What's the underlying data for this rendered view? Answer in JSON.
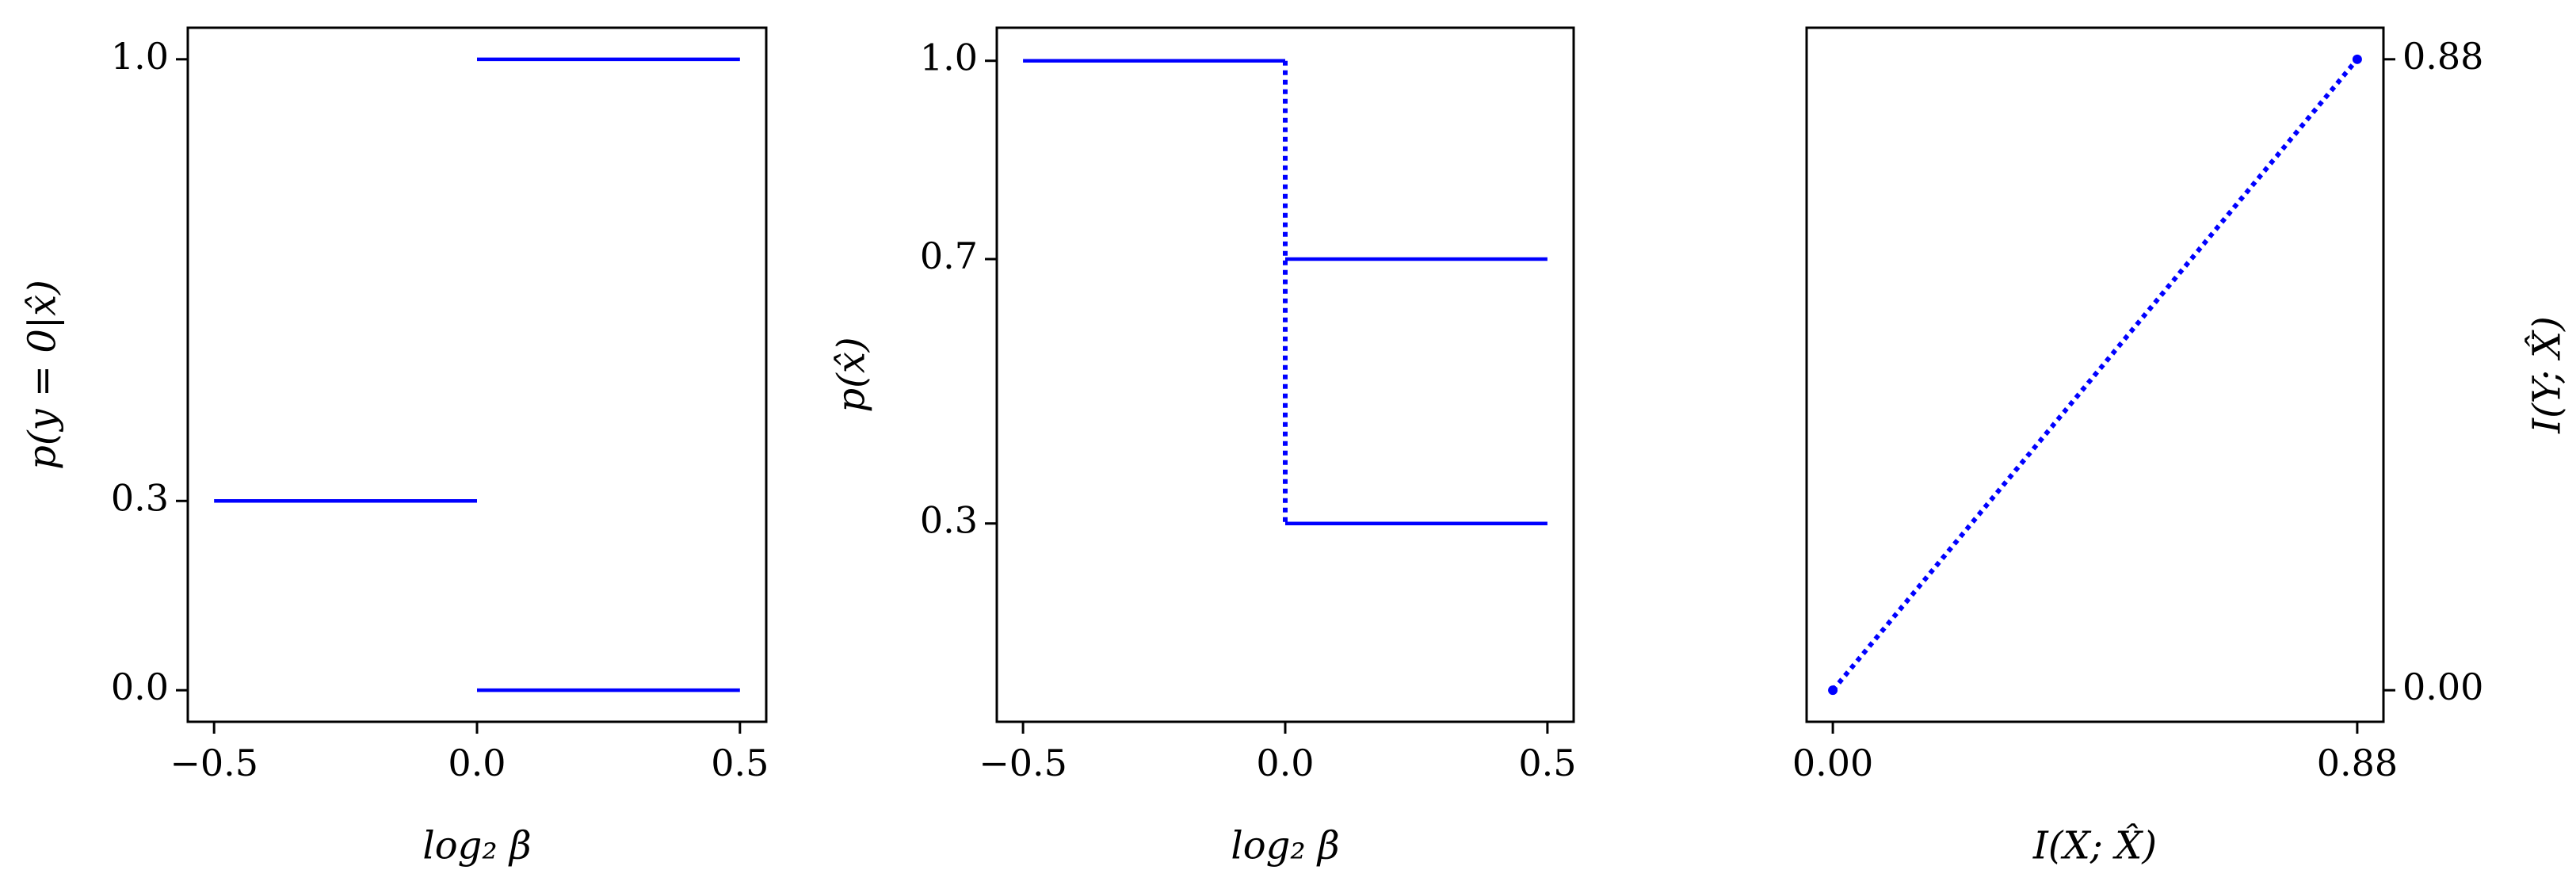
{
  "chart_data": [
    {
      "type": "line",
      "xlabel": "log₂ β",
      "ylabel": "p(y = 0|x̂)",
      "xlim": [
        -0.55,
        0.55
      ],
      "ylim": [
        -0.05,
        1.05
      ],
      "xticks": [
        {
          "value": -0.5,
          "label": "−0.5"
        },
        {
          "value": 0,
          "label": "0.0"
        },
        0.5
      ],
      "yticks": [
        {
          "value": 0,
          "label": "0.0"
        },
        0.3,
        {
          "value": 1,
          "label": "1.0"
        }
      ],
      "yaxis_side": "left",
      "series": [
        {
          "color": "#0000ff",
          "linestyle": "solid",
          "x": [
            -0.5,
            0
          ],
          "values": [
            0.3,
            0.3
          ]
        },
        {
          "color": "#0000ff",
          "linestyle": "solid",
          "x": [
            0,
            0.5
          ],
          "values": [
            1,
            1
          ]
        },
        {
          "color": "#0000ff",
          "linestyle": "solid",
          "x": [
            0,
            0.5
          ],
          "values": [
            0,
            0
          ]
        }
      ]
    },
    {
      "type": "line",
      "xlabel": "log₂ β",
      "ylabel": "p(x̂)",
      "xlim": [
        -0.55,
        0.55
      ],
      "ylim": [
        0,
        1.05
      ],
      "xticks": [
        {
          "value": -0.5,
          "label": "−0.5"
        },
        {
          "value": 0,
          "label": "0.0"
        },
        0.5
      ],
      "yticks": [
        0.3,
        0.7,
        {
          "value": 1,
          "label": "1.0"
        }
      ],
      "yaxis_side": "left",
      "series": [
        {
          "color": "#0000ff",
          "linestyle": "solid",
          "x": [
            -0.5,
            0
          ],
          "values": [
            1,
            1
          ]
        },
        {
          "color": "#0000ff",
          "linestyle": "dotted",
          "x": [
            0,
            0
          ],
          "values": [
            1,
            0.3
          ]
        },
        {
          "color": "#0000ff",
          "linestyle": "solid",
          "x": [
            0,
            0.5
          ],
          "values": [
            0.7,
            0.7
          ]
        },
        {
          "color": "#0000ff",
          "linestyle": "solid",
          "x": [
            0,
            0.5
          ],
          "values": [
            0.3,
            0.3
          ]
        }
      ]
    },
    {
      "type": "line",
      "xlabel": "I(X; X̂)",
      "ylabel": "I(Y; X̂)",
      "xlim": [
        -0.044,
        0.924
      ],
      "ylim": [
        -0.044,
        0.924
      ],
      "xticks": [
        {
          "value": 0,
          "label": "0.00"
        },
        0.88
      ],
      "yticks": [
        {
          "value": 0,
          "label": "0.00"
        },
        0.88
      ],
      "yaxis_side": "right",
      "series": [
        {
          "color": "#0000ff",
          "linestyle": "dotted",
          "marker": "o",
          "x": [
            0,
            0.88
          ],
          "values": [
            0,
            0.88
          ]
        }
      ]
    }
  ]
}
